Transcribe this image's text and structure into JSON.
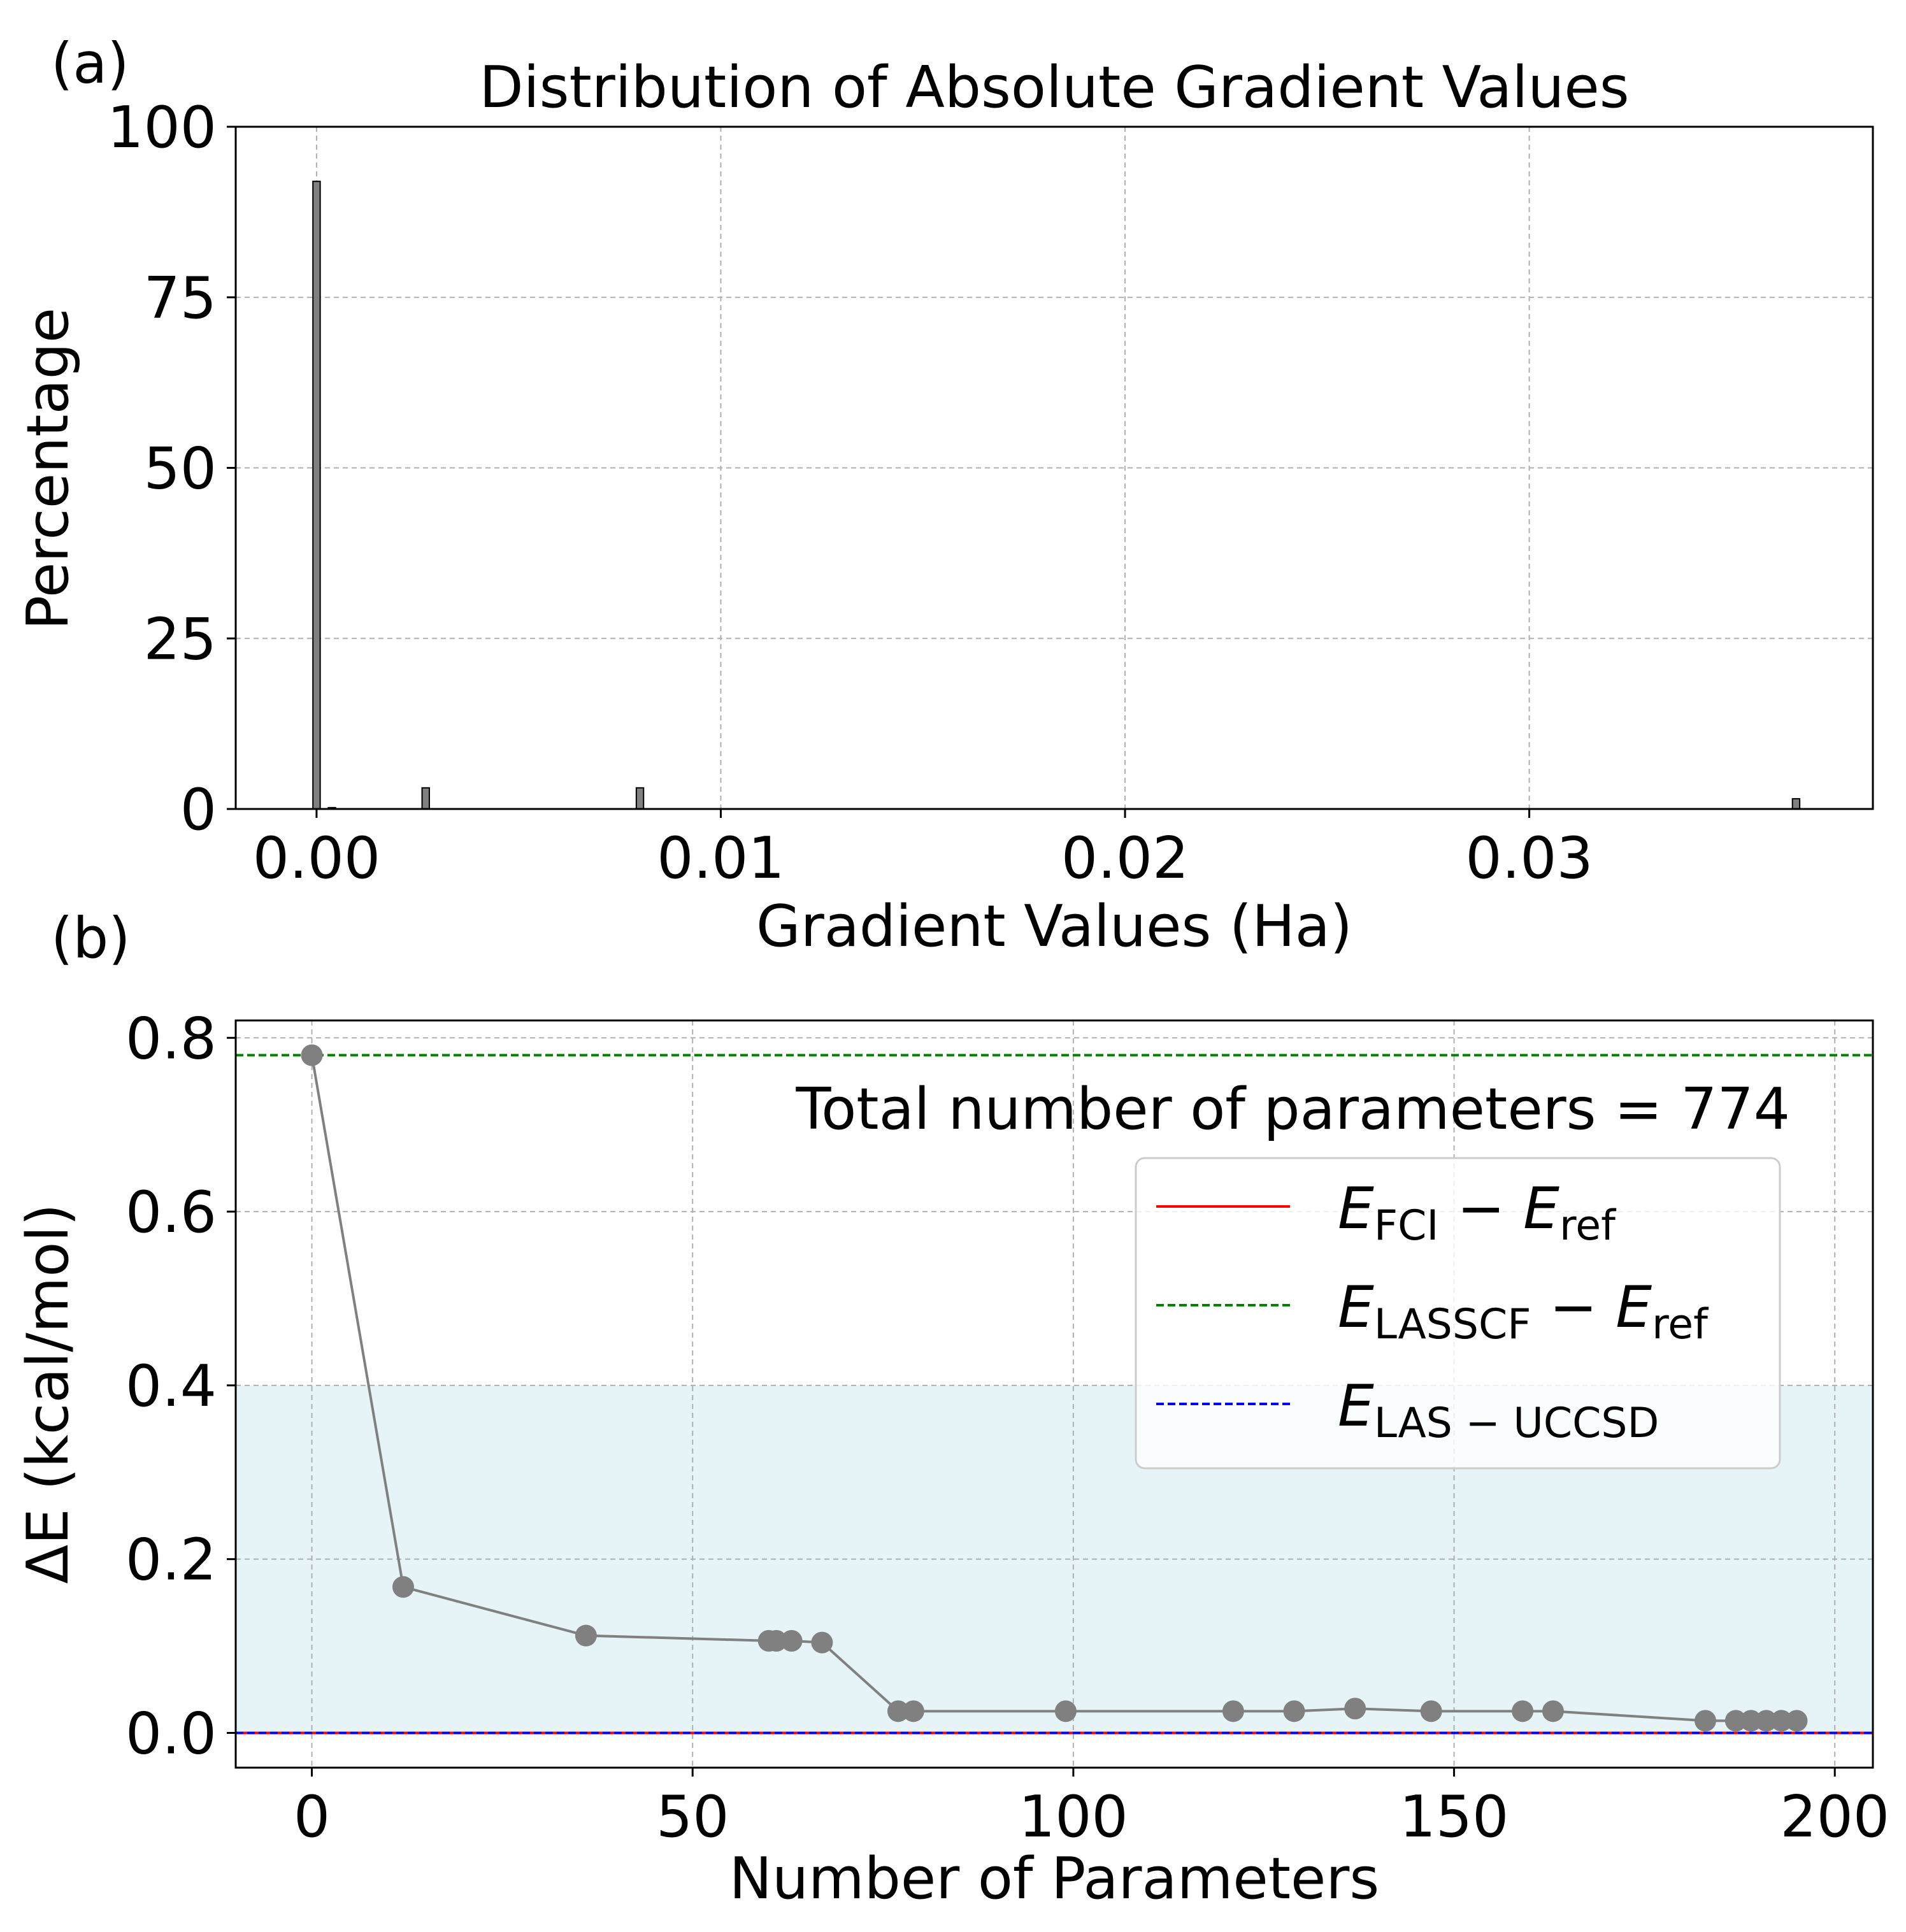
{
  "panel_labels": {
    "a": "(a)",
    "b": "(b)"
  },
  "colors": {
    "histogram_bar": "#808080",
    "grid": "#b0b0b0",
    "series_line": "#808080",
    "chemical_accuracy_band": "#add8e6",
    "fci": "#ff0000",
    "lasscf": "#008000",
    "las_uccsd": "#0000ff"
  },
  "chart_data": [
    {
      "type": "bar",
      "title": "Distribution of Absolute Gradient Values",
      "xlabel": "Gradient Values (Ha)",
      "ylabel": "Percentage",
      "xlim": [
        -0.002,
        0.0385
      ],
      "ylim": [
        0,
        100
      ],
      "xticks": [
        0.0,
        0.01,
        0.02,
        0.03
      ],
      "xtick_labels": [
        "0.00",
        "0.01",
        "0.02",
        "0.03"
      ],
      "yticks": [
        0,
        25,
        50,
        75,
        100
      ],
      "ytick_labels": [
        "0",
        "25",
        "50",
        "75",
        "100"
      ],
      "grid": true,
      "bin_width": 0.00018,
      "bins": [
        {
          "x": 0.0,
          "value": 92
        },
        {
          "x": 0.00038,
          "value": 0.2
        },
        {
          "x": 0.0027,
          "value": 3.1
        },
        {
          "x": 0.008,
          "value": 3.1
        },
        {
          "x": 0.0366,
          "value": 1.5
        }
      ]
    },
    {
      "type": "line",
      "xlabel": "Number of Parameters",
      "ylabel": "ΔE (kcal/mol)",
      "xlim": [
        -10,
        205
      ],
      "ylim": [
        -0.04,
        0.82
      ],
      "xticks": [
        0,
        50,
        100,
        150,
        200
      ],
      "xtick_labels": [
        "0",
        "50",
        "100",
        "150",
        "200"
      ],
      "yticks": [
        0.0,
        0.2,
        0.4,
        0.6,
        0.8
      ],
      "ytick_labels": [
        "0.0",
        "0.2",
        "0.4",
        "0.6",
        "0.8"
      ],
      "grid": true,
      "annotation": "Total number of parameters = 774",
      "shaded_band": {
        "y_from": 0.0,
        "y_to": 0.4
      },
      "series": [
        {
          "x": [
            0,
            12,
            36,
            60,
            61,
            63,
            67,
            77,
            79,
            99,
            121,
            129,
            137,
            147,
            159,
            163,
            183,
            187,
            189,
            191,
            193,
            195
          ],
          "y": [
            0.78,
            0.168,
            0.112,
            0.106,
            0.106,
            0.106,
            0.104,
            0.025,
            0.025,
            0.025,
            0.025,
            0.025,
            0.028,
            0.025,
            0.025,
            0.025,
            0.014,
            0.014,
            0.014,
            0.014,
            0.014,
            0.014
          ]
        }
      ],
      "reference_lines": [
        {
          "key": "fci",
          "y": 0.0,
          "style": "solid",
          "label_main": "E",
          "label_sub1": "FCI",
          "label_mid": " − E",
          "label_sub2": "ref"
        },
        {
          "key": "lasscf",
          "y": 0.78,
          "style": "dashed",
          "label_main": "E",
          "label_sub1": "LASSCF",
          "label_mid": " − E",
          "label_sub2": "ref"
        },
        {
          "key": "las_uccsd",
          "y": 0.0,
          "style": "dashed",
          "label_main": "E",
          "label_sub1": "LAS − UCCSD",
          "label_mid": "",
          "label_sub2": ""
        }
      ],
      "legend_position": "upper right"
    }
  ]
}
